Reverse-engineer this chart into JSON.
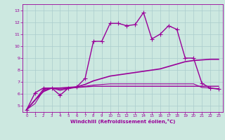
{
  "xlabel": "Windchill (Refroidissement éolien,°C)",
  "xlim": [
    -0.5,
    23.5
  ],
  "ylim": [
    4.5,
    13.5
  ],
  "yticks": [
    5,
    6,
    7,
    8,
    9,
    10,
    11,
    12,
    13
  ],
  "xticks": [
    0,
    1,
    2,
    3,
    4,
    5,
    6,
    7,
    8,
    9,
    10,
    11,
    12,
    13,
    14,
    15,
    16,
    17,
    18,
    19,
    20,
    21,
    22,
    23
  ],
  "bg_color": "#cce8e0",
  "line_color": "#990099",
  "grid_color": "#aacccc",
  "series": [
    {
      "x": [
        0,
        1,
        2,
        3,
        4,
        5,
        6,
        7,
        8,
        9,
        10,
        11,
        12,
        13,
        14,
        15,
        16,
        17,
        18,
        19,
        20,
        21,
        22,
        23
      ],
      "y": [
        4.7,
        6.1,
        6.5,
        6.5,
        5.9,
        6.5,
        6.6,
        7.3,
        10.4,
        10.4,
        11.9,
        11.9,
        11.7,
        11.8,
        12.8,
        10.6,
        11.0,
        11.7,
        11.4,
        9.0,
        9.0,
        6.9,
        6.5,
        6.4
      ],
      "marker": "+",
      "markersize": 4,
      "linewidth": 1.0
    },
    {
      "x": [
        0,
        1,
        2,
        3,
        4,
        5,
        6,
        7,
        8,
        9,
        10,
        11,
        12,
        13,
        14,
        15,
        16,
        17,
        18,
        19,
        20,
        21,
        22,
        23
      ],
      "y": [
        4.7,
        5.5,
        6.2,
        6.5,
        6.5,
        6.55,
        6.6,
        6.8,
        7.1,
        7.3,
        7.5,
        7.6,
        7.7,
        7.8,
        7.9,
        8.0,
        8.1,
        8.3,
        8.5,
        8.7,
        8.8,
        8.85,
        8.9,
        8.9
      ],
      "marker": null,
      "markersize": 0,
      "linewidth": 1.2
    },
    {
      "x": [
        0,
        1,
        2,
        3,
        4,
        5,
        6,
        7,
        8,
        9,
        10,
        11,
        12,
        13,
        14,
        15,
        16,
        17,
        18,
        19,
        20,
        21,
        22,
        23
      ],
      "y": [
        4.7,
        5.5,
        6.4,
        6.5,
        6.4,
        6.5,
        6.55,
        6.6,
        6.65,
        6.65,
        6.65,
        6.65,
        6.65,
        6.65,
        6.65,
        6.65,
        6.65,
        6.65,
        6.65,
        6.65,
        6.65,
        6.65,
        6.65,
        6.65
      ],
      "marker": null,
      "markersize": 0,
      "linewidth": 1.0
    },
    {
      "x": [
        0,
        1,
        2,
        3,
        4,
        5,
        6,
        7,
        8,
        9,
        10,
        11,
        12,
        13,
        14,
        15,
        16,
        17,
        18,
        19,
        20,
        21,
        22,
        23
      ],
      "y": [
        4.7,
        5.2,
        6.3,
        6.5,
        6.3,
        6.45,
        6.55,
        6.65,
        6.75,
        6.8,
        6.85,
        6.85,
        6.85,
        6.85,
        6.85,
        6.85,
        6.85,
        6.85,
        6.85,
        6.85,
        6.85,
        6.55,
        6.5,
        6.45
      ],
      "marker": null,
      "markersize": 0,
      "linewidth": 0.8
    }
  ]
}
